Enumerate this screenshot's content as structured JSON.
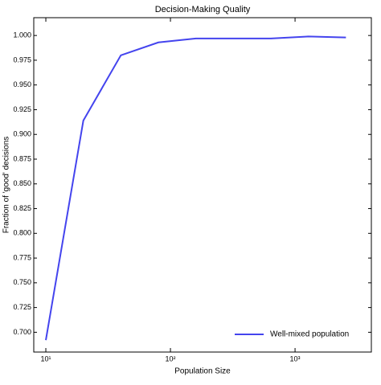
{
  "chart_data": {
    "type": "line",
    "title": "Decision-Making Quality",
    "x_label": "Population Size",
    "y_label": "Fraction of 'good' decisions",
    "x": [
      10,
      20,
      40,
      80,
      160,
      320,
      640,
      1280,
      2560
    ],
    "series": [
      {
        "name": "Well-mixed population",
        "color": "#4444ee",
        "values": [
          0.692,
          0.914,
          0.98,
          0.993,
          0.997,
          0.997,
          0.997,
          0.999,
          0.998
        ]
      }
    ],
    "x_log": true,
    "xlim": [
      8,
      4096
    ],
    "xticks": [
      {
        "value": 10,
        "label": "10¹"
      },
      {
        "value": 100,
        "label": "10²"
      },
      {
        "value": 1000,
        "label": "10³"
      }
    ],
    "ylim": [
      0.68,
      1.018
    ],
    "yticks": [
      {
        "value": 0.7,
        "label": "0.700"
      },
      {
        "value": 0.725,
        "label": "0.725"
      },
      {
        "value": 0.75,
        "label": "0.750"
      },
      {
        "value": 0.775,
        "label": "0.775"
      },
      {
        "value": 0.8,
        "label": "0.800"
      },
      {
        "value": 0.825,
        "label": "0.825"
      },
      {
        "value": 0.85,
        "label": "0.850"
      },
      {
        "value": 0.875,
        "label": "0.875"
      },
      {
        "value": 0.9,
        "label": "0.900"
      },
      {
        "value": 0.925,
        "label": "0.925"
      },
      {
        "value": 0.95,
        "label": "0.950"
      },
      {
        "value": 0.975,
        "label": "0.975"
      },
      {
        "value": 1.0,
        "label": "1.000"
      }
    ],
    "grid": false,
    "legend_position": "lower right"
  }
}
